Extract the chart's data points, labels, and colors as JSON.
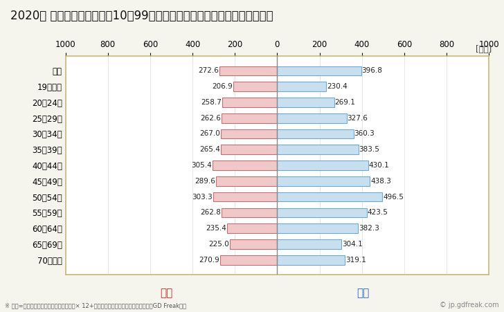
{
  "title": "2020年 民間企業（従業者数10〜99人）フルタイム労働者の男女別平均年収",
  "unit_label": "[万円]",
  "footnote": "※ 年収=「きまって支給する現金給与額」× 12+「年間賞与その他特別給与額」としてGD Freak推計",
  "watermark": "© jp.gdfreak.com",
  "female_label": "女性",
  "male_label": "男性",
  "categories": [
    "全体",
    "19歳以下",
    "20〜24歳",
    "25〜29歳",
    "30〜34歳",
    "35〜39歳",
    "40〜44歳",
    "45〜49歳",
    "50〜54歳",
    "55〜59歳",
    "60〜64歳",
    "65〜69歳",
    "70歳以上"
  ],
  "female_values": [
    272.6,
    206.9,
    258.7,
    262.6,
    267.0,
    265.4,
    305.4,
    289.6,
    303.3,
    262.8,
    235.4,
    225.0,
    270.9
  ],
  "male_values": [
    396.8,
    230.4,
    269.1,
    327.6,
    360.3,
    383.5,
    430.1,
    438.3,
    496.5,
    423.5,
    382.3,
    304.1,
    319.1
  ],
  "female_fill": "#f0c8c8",
  "female_edge": "#c07070",
  "male_fill": "#c8dff0",
  "male_edge": "#6aaad4",
  "female_label_color": "#cc2222",
  "male_label_color": "#2266cc",
  "xlim": 1000,
  "background_color": "#f5f5ee",
  "plot_bg_color": "#ffffff",
  "grid_color": "#dddddd",
  "border_color": "#c8b87a",
  "title_fontsize": 12,
  "tick_fontsize": 8.5,
  "bar_label_fontsize": 7.5,
  "legend_fontsize": 11,
  "footnote_fontsize": 6,
  "watermark_fontsize": 7
}
